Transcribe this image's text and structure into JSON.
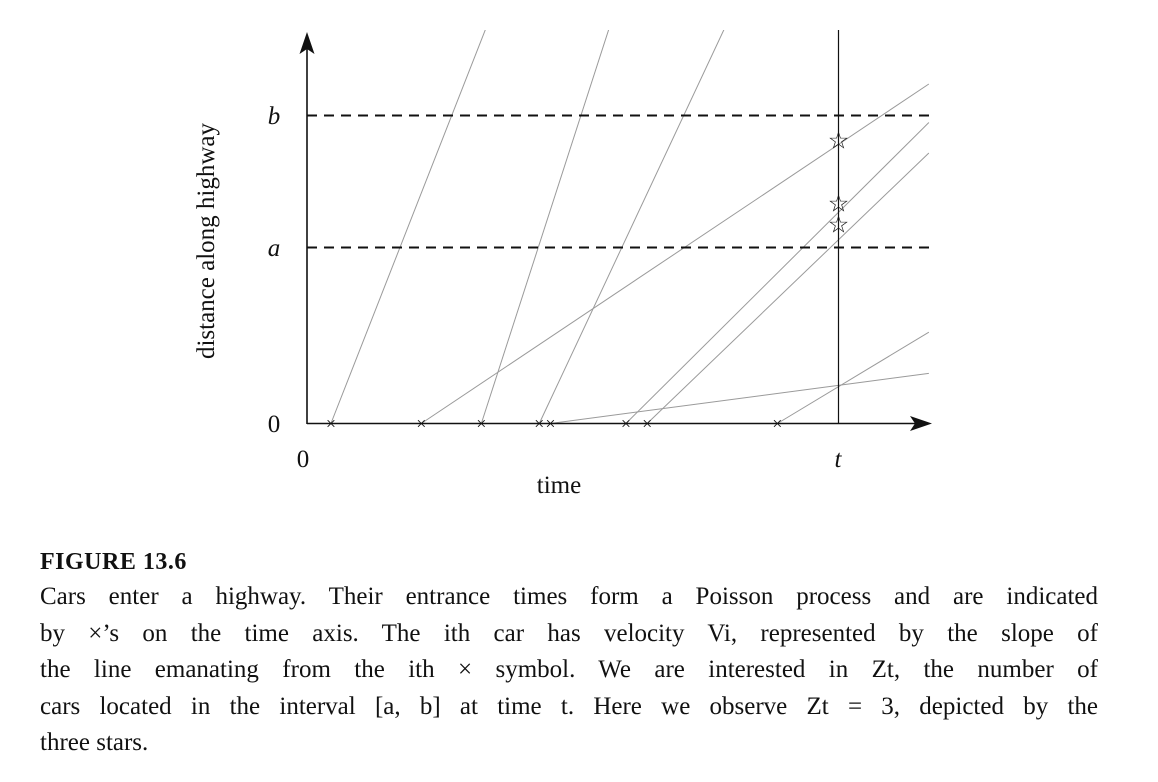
{
  "figure": {
    "axis_labels": {
      "x": "time",
      "y": "distance along highway"
    },
    "tick_labels": {
      "x_origin": "0",
      "x_t": "t",
      "y_origin": "0",
      "y_a": "a",
      "y_b": "b"
    }
  },
  "chart_data": {
    "type": "line",
    "title": "",
    "xlabel": "time",
    "ylabel": "distance along highway",
    "x_ticks": [
      "0",
      "t"
    ],
    "y_ticks": [
      "0",
      "a",
      "b"
    ],
    "x_axis_max": 1.17,
    "y_axis_max": 1.2,
    "t": 1.0,
    "a": 0.5,
    "b": 0.875,
    "entrance_marker": "×",
    "star_marker": "☆",
    "cars": [
      {
        "entry_time": 0.045,
        "velocity": 3.85
      },
      {
        "entry_time": 0.215,
        "velocity": 1.01
      },
      {
        "entry_time": 0.328,
        "velocity": 4.67
      },
      {
        "entry_time": 0.437,
        "velocity": 3.22
      },
      {
        "entry_time": 0.458,
        "velocity": 0.2
      },
      {
        "entry_time": 0.6,
        "velocity": 1.5
      },
      {
        "entry_time": 0.64,
        "velocity": 1.45
      },
      {
        "entry_time": 0.885,
        "velocity": 0.91
      }
    ],
    "Z_t": 3,
    "star_positions": [
      0.804,
      0.625,
      0.565
    ]
  },
  "caption": {
    "label": "FIGURE 13.6",
    "lines": [
      "Cars enter a highway. Their entrance times form a Poisson process and are indicated",
      "by ×’s on the time axis. The ith car has velocity Vi, represented by the slope of",
      "the line emanating from the ith × symbol. We are interested in Zt, the number of",
      "cars located in the interval [a, b] at time t. Here we observe Zt = 3, depicted by the",
      "three stars."
    ]
  }
}
